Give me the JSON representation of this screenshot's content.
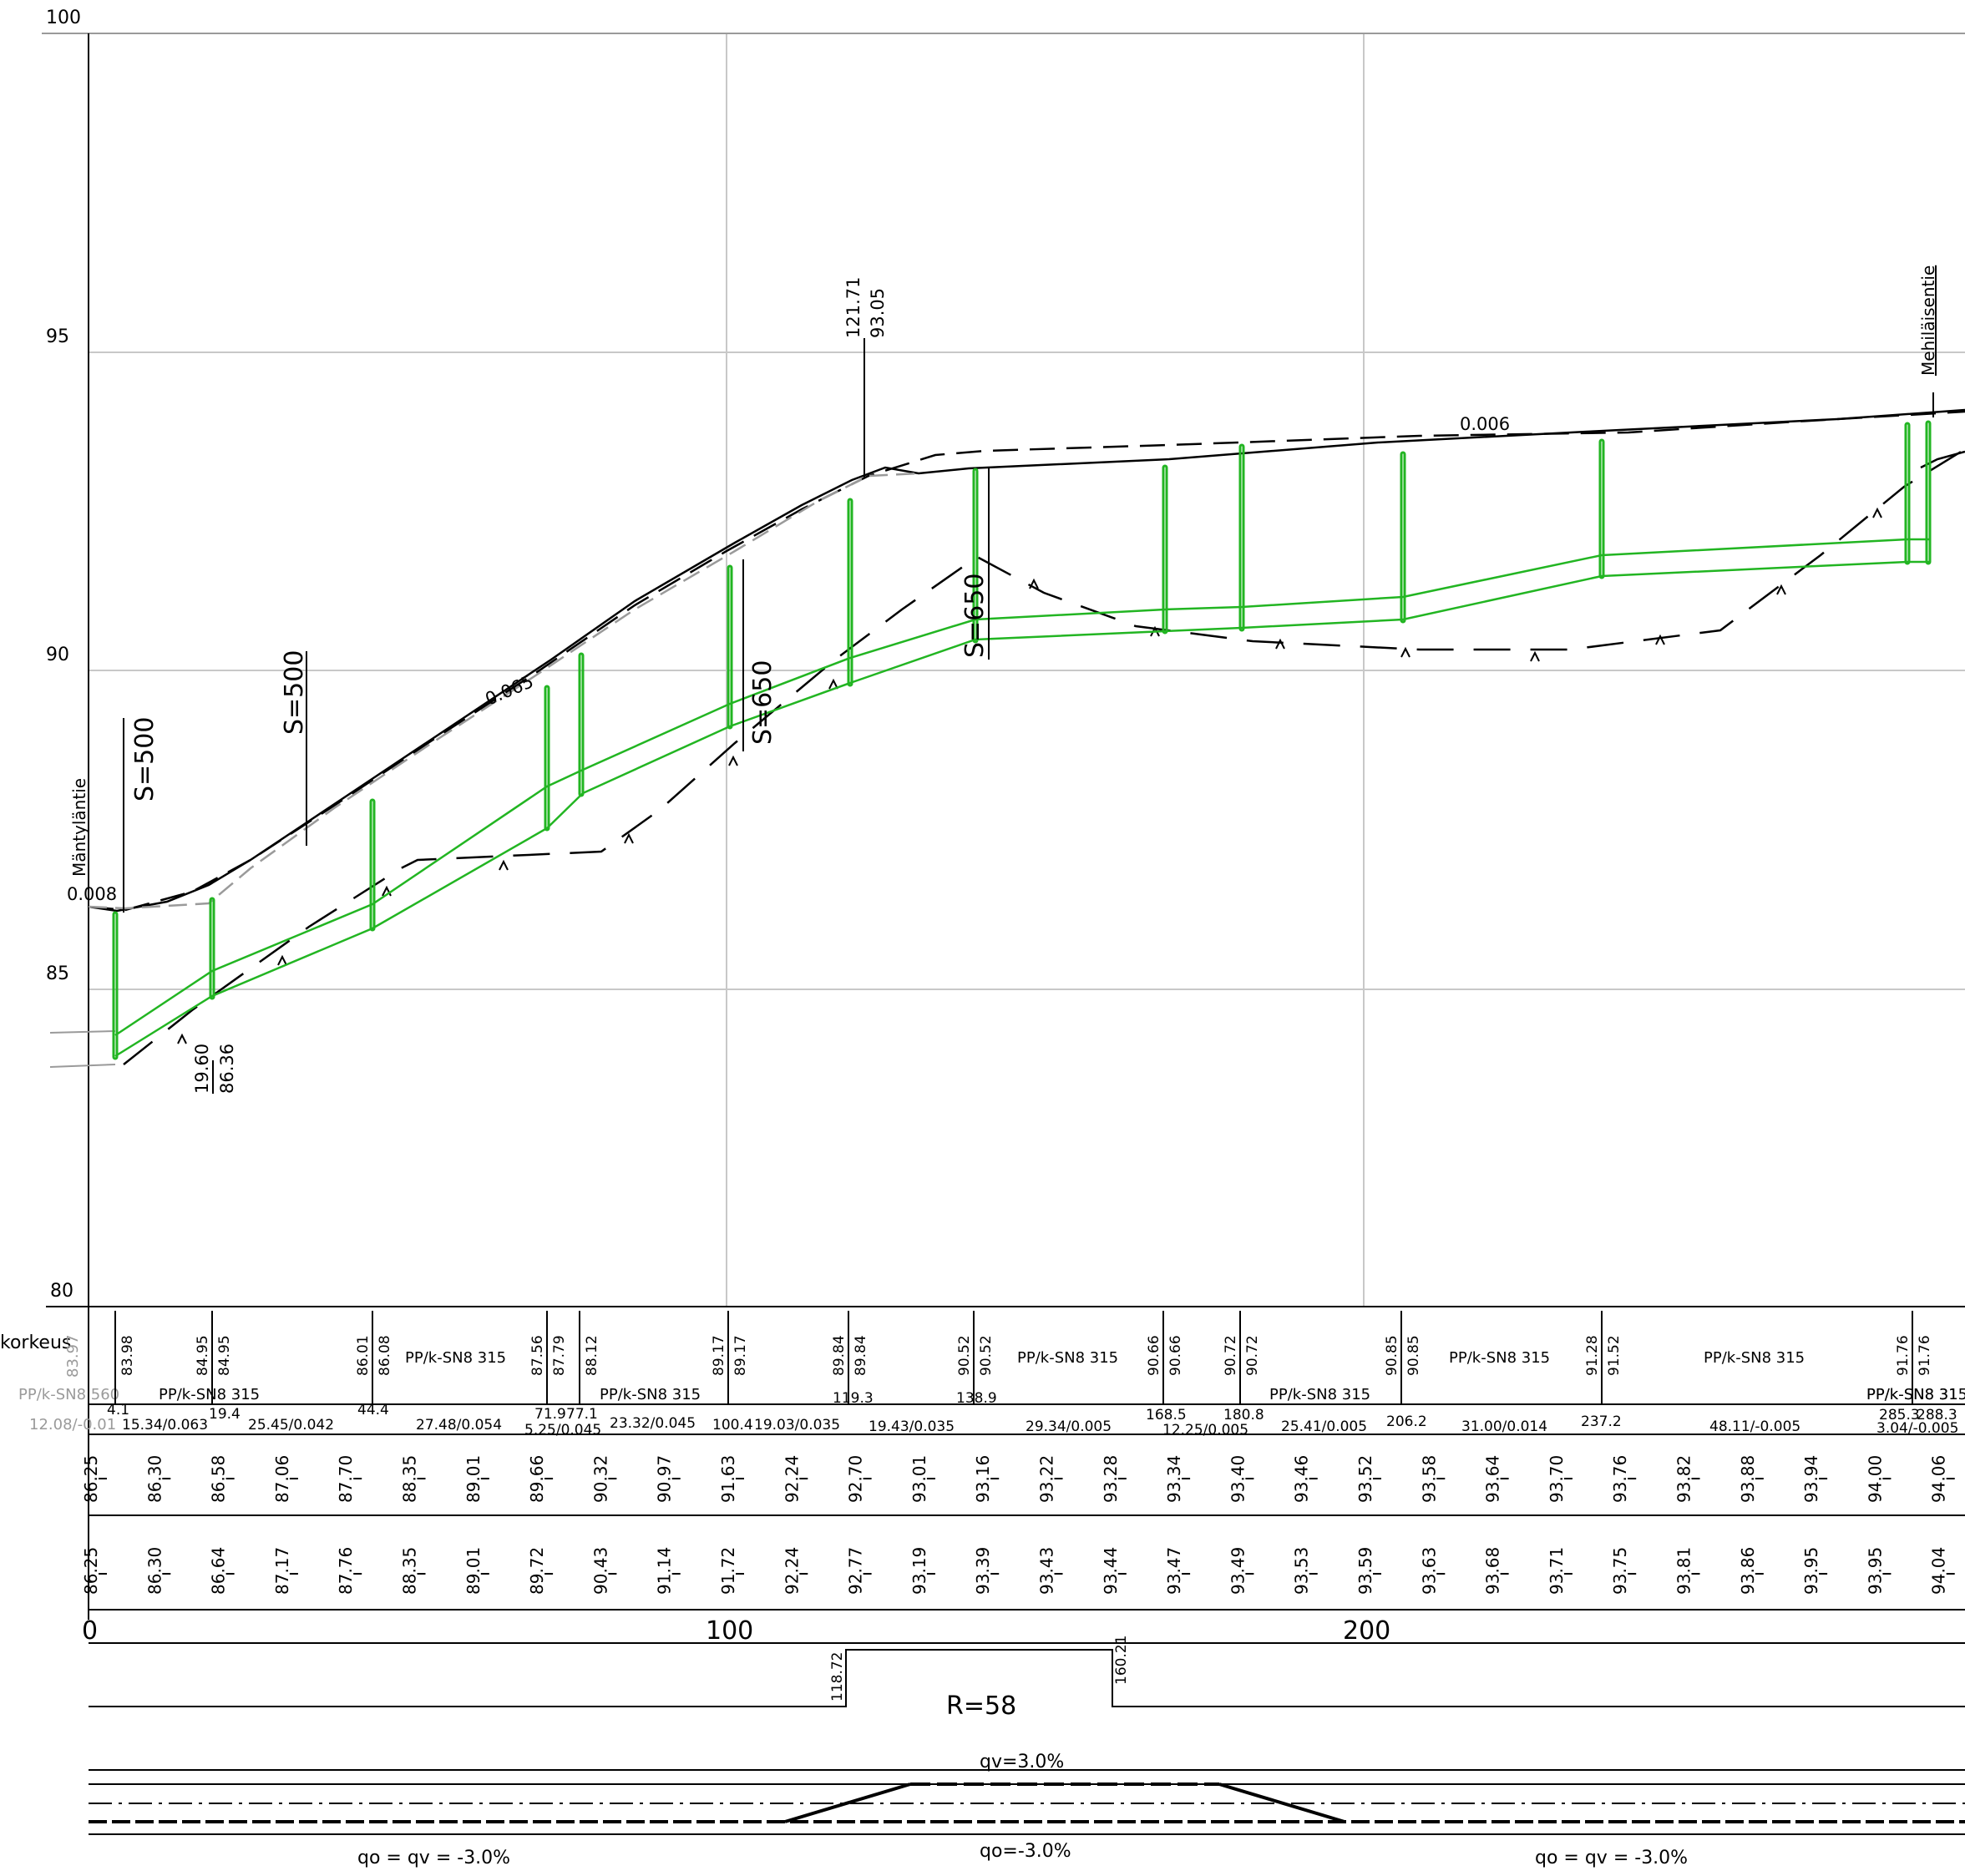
{
  "profile": {
    "y_axis_labels": [
      "100",
      "95",
      "90",
      "85",
      "80"
    ],
    "x_axis_labels": [
      "0",
      "100",
      "200"
    ],
    "road_names": [
      "Mäntyläntie",
      "Mehiläisentie"
    ],
    "curve_labels": [
      "S=500",
      "S=500",
      "S=650",
      "S=650"
    ],
    "slope_labels": [
      "0.008",
      "0.065",
      "0.006"
    ],
    "marker_labels": [
      "121.71",
      "93.05",
      "19.60",
      "86.36"
    ],
    "colors": {
      "pipe": "#22b522",
      "ink": "#000000",
      "grid": "#c8c8c8",
      "gray": "#9a9a9a"
    }
  },
  "table": {
    "row_label": "korkeus",
    "gray_elevations": [
      "83.97"
    ],
    "gray_pipe": "PP/k-SN8 560",
    "gray_segment": "12.08/-0.01",
    "elevation_pairs": [
      [
        "83.98"
      ],
      [
        "84.95",
        "84.95"
      ],
      [
        "86.01",
        "86.08"
      ],
      [
        "87.56",
        "87.79"
      ],
      [
        "88.12"
      ],
      [
        "89.17",
        "89.17"
      ],
      [
        "89.84",
        "89.84"
      ],
      [
        "90.52",
        "90.52"
      ],
      [
        "90.66",
        "90.66"
      ],
      [
        "90.72",
        "90.72"
      ],
      [
        "90.85",
        "90.85"
      ],
      [
        "91.28",
        "91.52"
      ],
      [
        "91.76",
        "91.76"
      ]
    ],
    "pipe_labels": [
      "PP/k-SN8 315",
      "PP/k-SN8 315",
      "PP/k-SN8 315",
      "PP/k-SN8 315",
      "PP/k-SN8 315",
      "PP/k-SN8 315",
      "PP/k-SN8 315",
      "PP/k-SN8 315",
      "PP/k-SN8 31"
    ],
    "station_labels": [
      "4.1",
      "19.4",
      "44.4",
      "71.9",
      "77.1",
      "119.3",
      "138.9",
      "168.5",
      "180.8",
      "206.2",
      "237.2",
      "285.3",
      "288.3"
    ],
    "segments": [
      "15.34/0.063",
      "25.45/0.042",
      "27.48/0.054",
      "5.25/0.045",
      "23.32/0.045",
      "100.4",
      "19.03/0.035",
      "19.43/0.035",
      "29.34/0.005",
      "12.25/0.005",
      "25.41/0.005",
      "31.00/0.014",
      "48.11/-0.005",
      "3.04/-0.005"
    ]
  },
  "grades": {
    "design_row": [
      "86.25",
      "86.30",
      "86.58",
      "87.06",
      "87.70",
      "88.35",
      "89.01",
      "89.66",
      "90.32",
      "90.97",
      "91.63",
      "92.24",
      "92.70",
      "93.01",
      "93.16",
      "93.22",
      "93.28",
      "93.34",
      "93.40",
      "93.46",
      "93.52",
      "93.58",
      "93.64",
      "93.70",
      "93.76",
      "93.82",
      "93.88",
      "93.94",
      "94.00",
      "94.06"
    ],
    "ground_row": [
      "86.25",
      "86.30",
      "86.64",
      "87.17",
      "87.76",
      "88.35",
      "89.01",
      "89.72",
      "90.43",
      "91.14",
      "91.72",
      "92.24",
      "92.77",
      "93.19",
      "93.39",
      "93.43",
      "93.44",
      "93.47",
      "93.49",
      "93.53",
      "93.59",
      "93.63",
      "93.68",
      "93.71",
      "93.75",
      "93.81",
      "93.86",
      "93.95",
      "93.95",
      "94.04"
    ]
  },
  "curvature": {
    "start": "118.72",
    "end": "160.21",
    "radius": "R=58"
  },
  "superelevation": {
    "qv": "qv=3.0%",
    "left": "qo = qv = -3.0%",
    "middle": "qo=-3.0%",
    "right": "qo = qv = -3.0%"
  }
}
